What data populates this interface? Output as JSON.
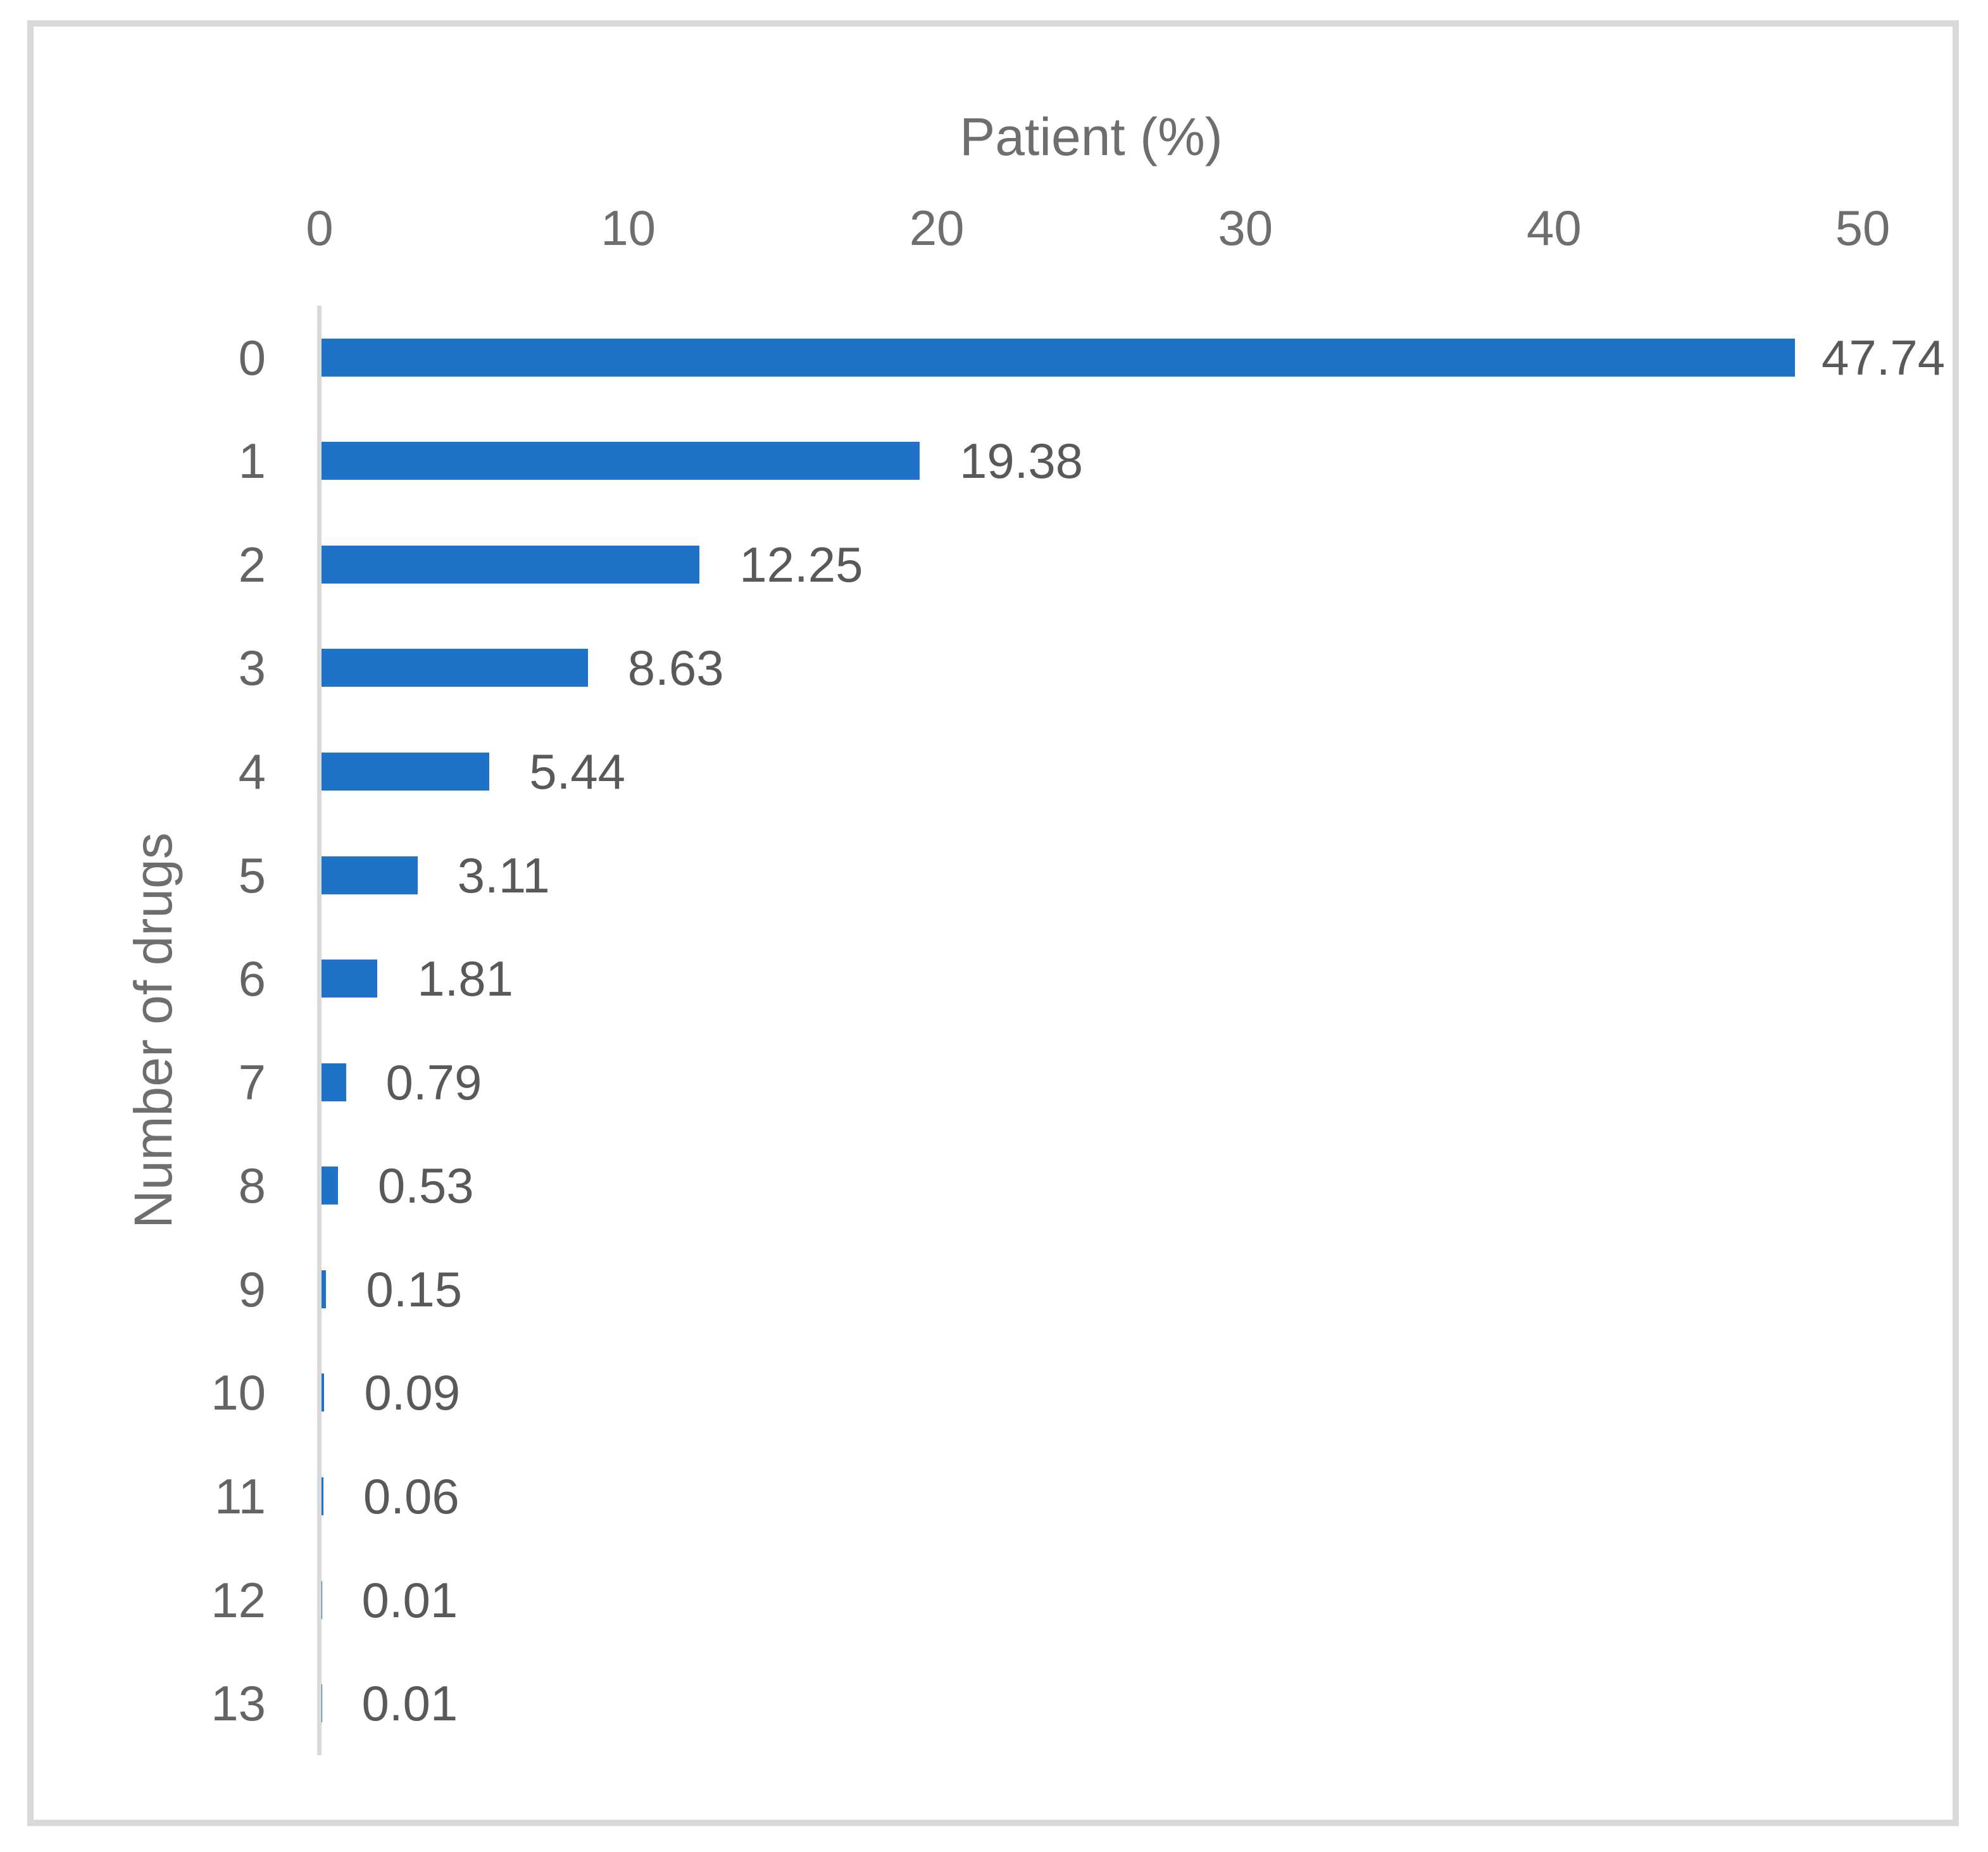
{
  "figure": {
    "background": "#FFFFFF",
    "frame_border_color": "#D9D9D9"
  },
  "chart_data": {
    "type": "bar",
    "orientation": "horizontal",
    "xlabel": "Patient (%)",
    "ylabel": "Number of drugs",
    "categories": [
      "0",
      "1",
      "2",
      "3",
      "4",
      "5",
      "6",
      "7",
      "8",
      "9",
      "10",
      "11",
      "12",
      "13"
    ],
    "values": [
      47.74,
      19.38,
      12.25,
      8.63,
      5.44,
      3.11,
      1.81,
      0.79,
      0.53,
      0.15,
      0.09,
      0.06,
      0.01,
      0.01
    ],
    "value_labels": [
      "47.74",
      "19.38",
      "12.25",
      "8.63",
      "5.44",
      "3.11",
      "1.81",
      "0.79",
      "0.53",
      "0.15",
      "0.09",
      "0.06",
      "0.01",
      "0.01"
    ],
    "x_tick_labels": [
      "0",
      "10",
      "20",
      "30",
      "40",
      "50"
    ],
    "x_tick_values": [
      0,
      10,
      20,
      30,
      40,
      50
    ],
    "xlim": [
      0,
      50
    ],
    "bar_color": "#1E73C8",
    "axis_line_color": "#D9D9D9",
    "tick_text_color": "#6E6E6E",
    "value_text_color": "#595959",
    "grid": false,
    "legend": false,
    "value_label_position": "outside-end"
  }
}
